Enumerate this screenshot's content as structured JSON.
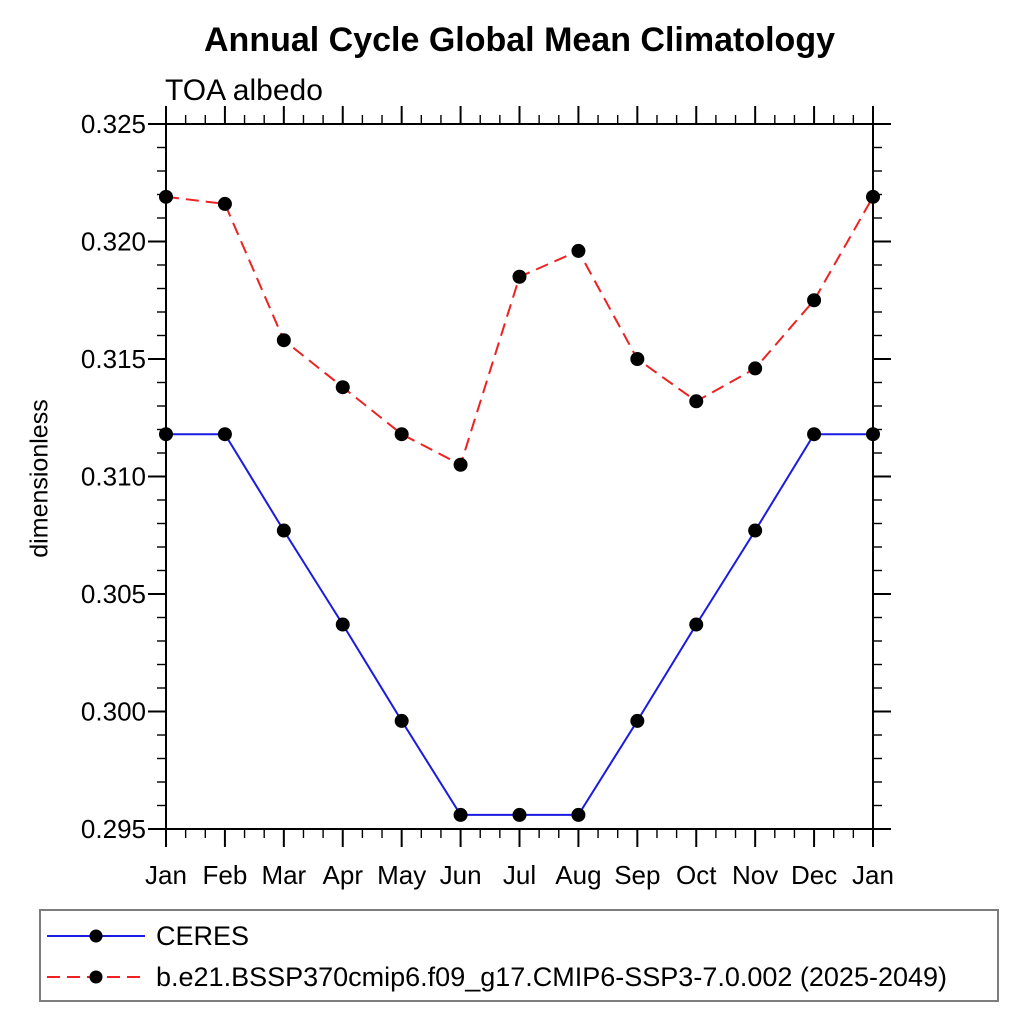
{
  "page": {
    "background": "#ffffff",
    "text_color": "#000000"
  },
  "chart_data": {
    "type": "line",
    "title": "Annual Cycle Global Mean Climatology",
    "subtitle": "TOA albedo",
    "xlabel": "",
    "ylabel": "dimensionless",
    "categories": [
      "Jan",
      "Feb",
      "Mar",
      "Apr",
      "May",
      "Jun",
      "Jul",
      "Aug",
      "Sep",
      "Oct",
      "Nov",
      "Dec",
      "Jan"
    ],
    "ylim": [
      0.295,
      0.325
    ],
    "ytick_major_step": 0.005,
    "ytick_minor_step": 0.001,
    "ytick_decimals": 3,
    "x_minor_per_major": 2,
    "grid": "off",
    "frame": "box",
    "legend_position": "bottom-outside",
    "marker": {
      "shape": "filled-circle",
      "color": "#000000",
      "radius_px": 7
    },
    "series": [
      {
        "name": "CERES",
        "color": "#1a1ae0",
        "line_style": "solid",
        "values": [
          0.3118,
          0.3118,
          0.3077,
          0.3037,
          0.2996,
          0.2956,
          0.2956,
          0.2956,
          0.2996,
          0.3037,
          0.3077,
          0.3118,
          0.3118
        ]
      },
      {
        "name": "b.e21.BSSP370cmip6.f09_g17.CMIP6-SSP3-7.0.002 (2025-2049)",
        "color": "#ee2222",
        "line_style": "dashed",
        "values": [
          0.3219,
          0.3216,
          0.3158,
          0.3138,
          0.3118,
          0.3105,
          0.3185,
          0.3196,
          0.315,
          0.3132,
          0.3146,
          0.3175,
          0.3219
        ]
      }
    ]
  }
}
